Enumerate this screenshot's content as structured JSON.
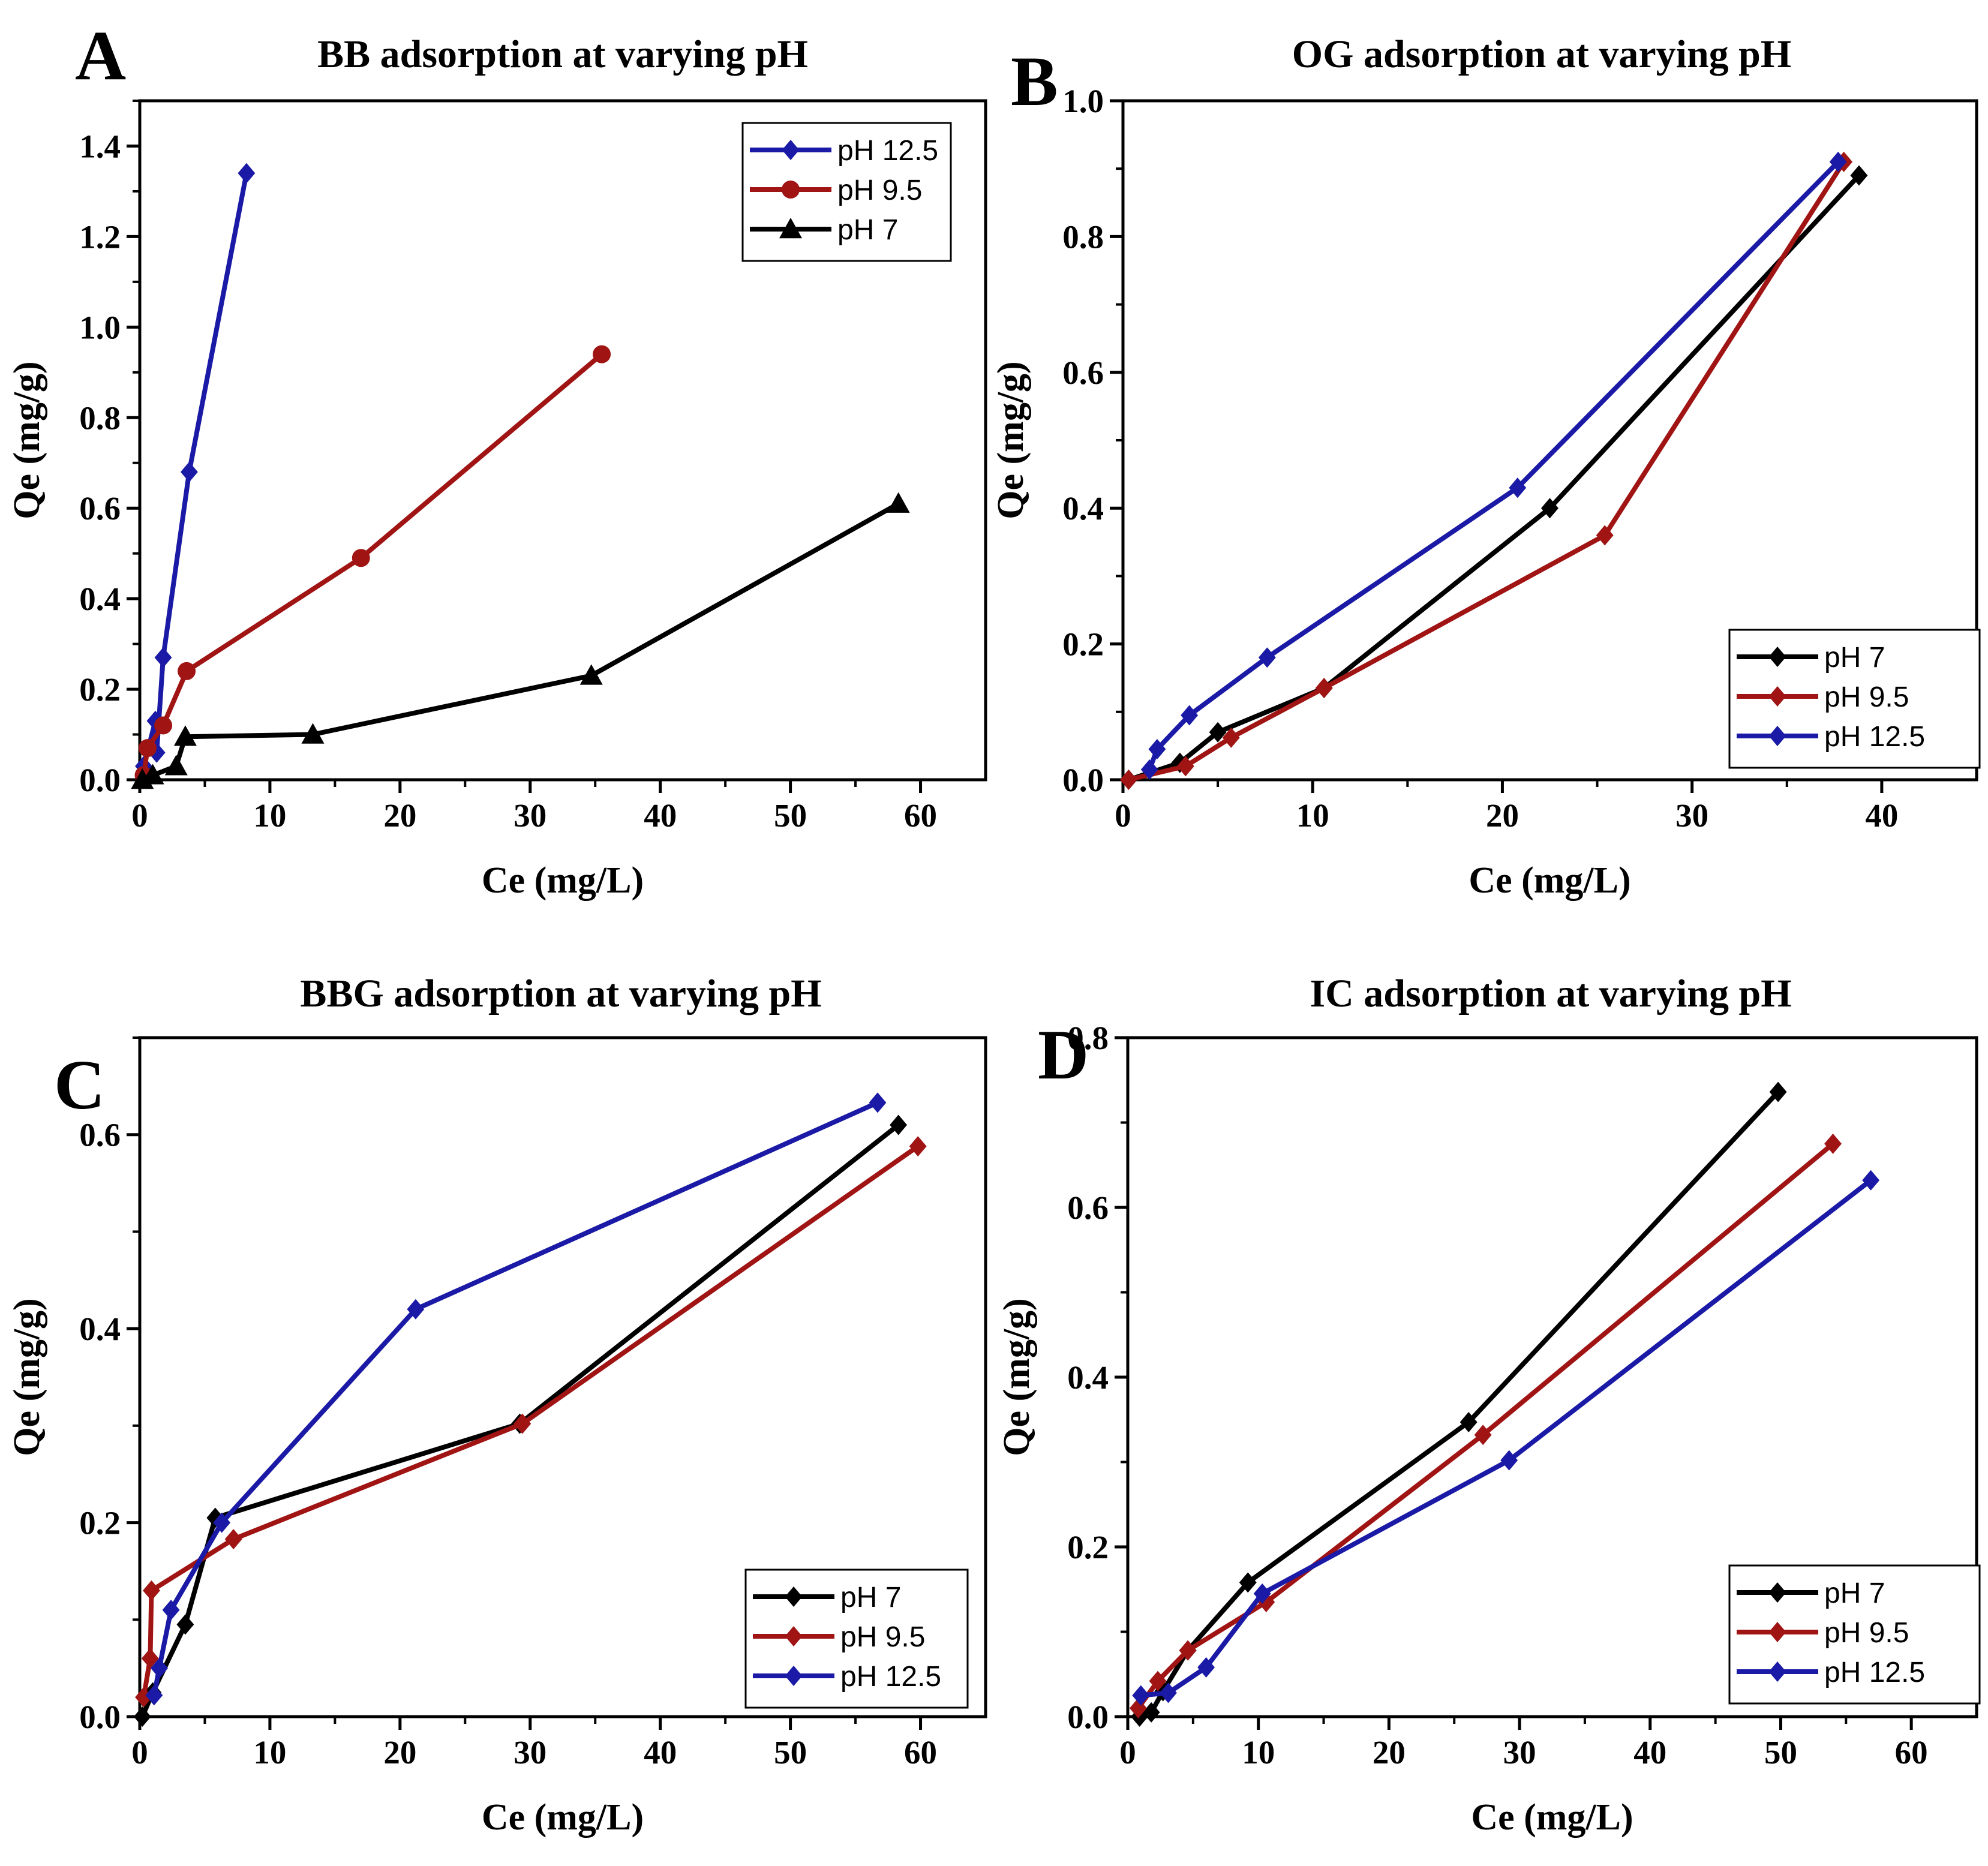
{
  "chart_data": [
    {
      "type": "line",
      "panel": "A",
      "title": "BB adsorption at varying pH",
      "xlabel": "Ce (mg/L)",
      "ylabel": "Qe (mg/g)",
      "xlim": [
        0,
        65
      ],
      "ylim": [
        0,
        1.5
      ],
      "xticks": [
        0,
        10,
        20,
        30,
        40,
        50,
        60
      ],
      "yticks": [
        0.0,
        0.2,
        0.4,
        0.6,
        0.8,
        1.0,
        1.2,
        1.4
      ],
      "legend_position": "top-right",
      "series": [
        {
          "name": "pH 12.5",
          "color": "#1a1aa6",
          "marker": "diamond",
          "points": [
            [
              0.3,
              0.03
            ],
            [
              1.2,
              0.13
            ],
            [
              1.3,
              0.06
            ],
            [
              1.8,
              0.27
            ],
            [
              3.8,
              0.68
            ],
            [
              8.2,
              1.34
            ]
          ]
        },
        {
          "name": "pH 9.5",
          "color": "#a01414",
          "marker": "circle",
          "points": [
            [
              0.3,
              0.01
            ],
            [
              0.6,
              0.07
            ],
            [
              1.8,
              0.12
            ],
            [
              3.6,
              0.24
            ],
            [
              17.0,
              0.49
            ],
            [
              35.5,
              0.94
            ]
          ]
        },
        {
          "name": "pH 7",
          "color": "#000000",
          "marker": "triangle",
          "points": [
            [
              0.2,
              0.0
            ],
            [
              1.0,
              0.01
            ],
            [
              2.8,
              0.03
            ],
            [
              3.5,
              0.095
            ],
            [
              13.3,
              0.1
            ],
            [
              34.7,
              0.23
            ],
            [
              58.3,
              0.61
            ]
          ]
        }
      ]
    },
    {
      "type": "line",
      "panel": "B",
      "title": "OG adsorption at varying pH",
      "xlabel": "Ce (mg/L)",
      "ylabel": "Qe (mg/g)",
      "xlim": [
        0,
        45
      ],
      "ylim": [
        0,
        1.0
      ],
      "xticks": [
        0,
        10,
        20,
        30,
        40
      ],
      "yticks": [
        0.0,
        0.2,
        0.4,
        0.6,
        0.8,
        1.0
      ],
      "legend_position": "bottom-right",
      "series": [
        {
          "name": "pH 7",
          "color": "#000000",
          "marker": "diamond",
          "points": [
            [
              0.3,
              0.0
            ],
            [
              3.0,
              0.025
            ],
            [
              5.0,
              0.07
            ],
            [
              10.6,
              0.135
            ],
            [
              22.5,
              0.4
            ],
            [
              38.8,
              0.89
            ]
          ]
        },
        {
          "name": "pH 9.5",
          "color": "#a01414",
          "marker": "diamond",
          "points": [
            [
              0.3,
              0.0
            ],
            [
              3.3,
              0.02
            ],
            [
              5.7,
              0.062
            ],
            [
              10.6,
              0.135
            ],
            [
              25.4,
              0.36
            ],
            [
              38.0,
              0.91
            ]
          ]
        },
        {
          "name": "pH 12.5",
          "color": "#1a1aa6",
          "marker": "diamond",
          "points": [
            [
              1.4,
              0.015
            ],
            [
              1.8,
              0.045
            ],
            [
              3.5,
              0.095
            ],
            [
              7.6,
              0.18
            ],
            [
              20.8,
              0.43
            ],
            [
              37.7,
              0.91
            ]
          ]
        }
      ]
    },
    {
      "type": "line",
      "panel": "C",
      "title": "BBG adsorption at varying pH",
      "xlabel": "Ce (mg/L)",
      "ylabel": "Qe (mg/g)",
      "xlim": [
        0,
        65
      ],
      "ylim": [
        0,
        0.7
      ],
      "xticks": [
        0,
        10,
        20,
        30,
        40,
        50,
        60
      ],
      "yticks": [
        0.0,
        0.2,
        0.4,
        0.6
      ],
      "legend_position": "bottom-right",
      "series": [
        {
          "name": "pH 7",
          "color": "#000000",
          "marker": "diamond",
          "points": [
            [
              0.2,
              0.0
            ],
            [
              1.0,
              0.025
            ],
            [
              3.5,
              0.095
            ],
            [
              5.8,
              0.205
            ],
            [
              29.2,
              0.302
            ],
            [
              58.3,
              0.61
            ]
          ]
        },
        {
          "name": "pH 9.5",
          "color": "#a01414",
          "marker": "diamond",
          "points": [
            [
              0.3,
              0.02
            ],
            [
              0.8,
              0.06
            ],
            [
              0.9,
              0.13
            ],
            [
              7.2,
              0.183
            ],
            [
              29.4,
              0.302
            ],
            [
              59.8,
              0.588
            ]
          ]
        },
        {
          "name": "pH 12.5",
          "color": "#1a1aa6",
          "marker": "diamond",
          "points": [
            [
              1.1,
              0.022
            ],
            [
              1.5,
              0.05
            ],
            [
              2.4,
              0.11
            ],
            [
              6.3,
              0.2
            ],
            [
              21.2,
              0.42
            ],
            [
              56.7,
              0.633
            ]
          ]
        }
      ]
    },
    {
      "type": "line",
      "panel": "D",
      "title": "IC adsorption at varying pH",
      "xlabel": "Ce (mg/L)",
      "ylabel": "Qe (mg/g)",
      "xlim": [
        0,
        65
      ],
      "ylim": [
        0,
        0.8
      ],
      "xticks": [
        0,
        10,
        20,
        30,
        40,
        50,
        60
      ],
      "yticks": [
        0.0,
        0.2,
        0.4,
        0.6,
        0.8
      ],
      "legend_position": "bottom-right",
      "series": [
        {
          "name": "pH 7",
          "color": "#000000",
          "marker": "diamond",
          "points": [
            [
              0.9,
              0.0
            ],
            [
              1.8,
              0.005
            ],
            [
              2.7,
              0.03
            ],
            [
              4.6,
              0.078
            ],
            [
              9.2,
              0.158
            ],
            [
              26.1,
              0.347
            ],
            [
              49.8,
              0.736
            ]
          ]
        },
        {
          "name": "pH 9.5",
          "color": "#a01414",
          "marker": "diamond",
          "points": [
            [
              0.8,
              0.01
            ],
            [
              2.3,
              0.042
            ],
            [
              4.6,
              0.078
            ],
            [
              10.6,
              0.135
            ],
            [
              27.2,
              0.332
            ],
            [
              54.0,
              0.675
            ]
          ]
        },
        {
          "name": "pH 12.5",
          "color": "#1a1aa6",
          "marker": "diamond",
          "points": [
            [
              1.0,
              0.025
            ],
            [
              3.1,
              0.028
            ],
            [
              6.0,
              0.058
            ],
            [
              10.3,
              0.145
            ],
            [
              29.2,
              0.302
            ],
            [
              56.9,
              0.632
            ]
          ]
        }
      ]
    }
  ]
}
